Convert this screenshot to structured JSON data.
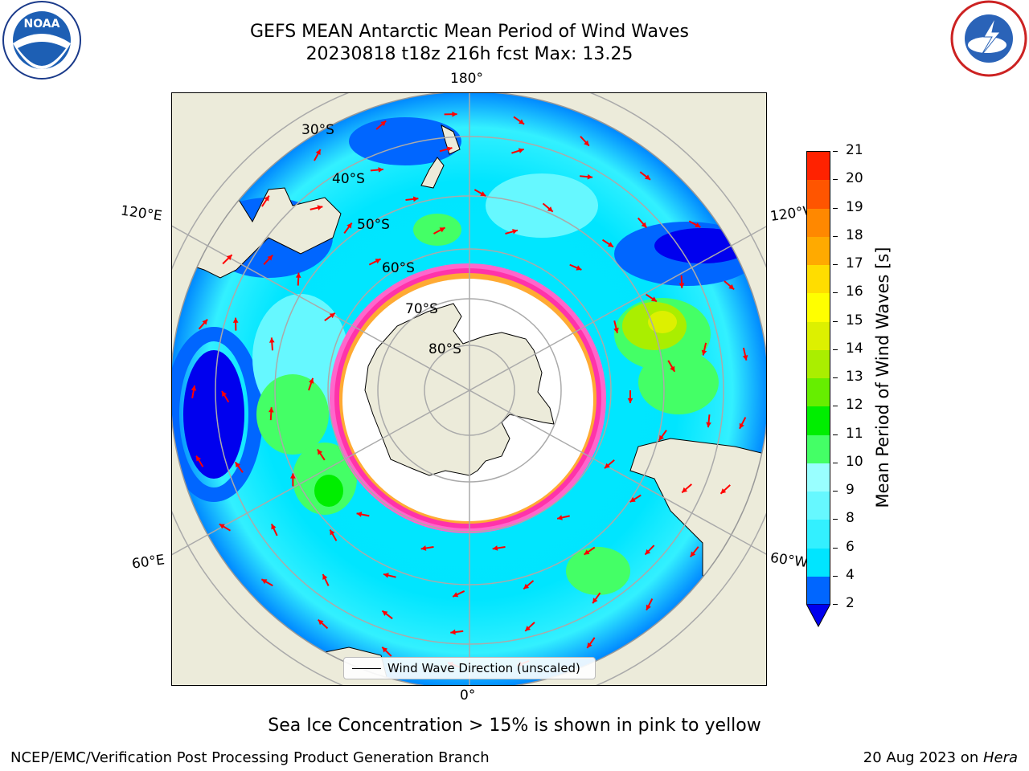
{
  "title": {
    "line1": "GEFS MEAN Antarctic Mean Period of Wind Waves",
    "line2": "20230818 t18z 216h fcst   Max: 13.25"
  },
  "longitude_labels": {
    "top": "180°",
    "bottom": "0°",
    "upper_left": "120°E",
    "upper_right": "120°W",
    "lower_left": "60°E",
    "lower_right": "60°W"
  },
  "latitude_labels": [
    "30°S",
    "40°S",
    "50°S",
    "60°S",
    "70°S",
    "80°S"
  ],
  "legend": {
    "label": "Wind Wave Direction (unscaled)"
  },
  "colorbar": {
    "label": "Mean Period of Wind Waves [s]",
    "ticks": [
      "2",
      "4",
      "6",
      "8",
      "9",
      "10",
      "11",
      "12",
      "13",
      "14",
      "15",
      "16",
      "17",
      "18",
      "19",
      "20",
      "21"
    ],
    "colors": [
      "#0066ff",
      "#00e5ff",
      "#33f0ff",
      "#66f8ff",
      "#99ffff",
      "#44ff66",
      "#00ee00",
      "#66ee00",
      "#aaee00",
      "#ddf000",
      "#ffff00",
      "#ffdd00",
      "#ffaa00",
      "#ff8800",
      "#ff5500",
      "#ff2200"
    ],
    "extend_color": "#0000ee"
  },
  "note": "Sea Ice Concentration > 15% is shown in pink to yellow",
  "credit": "NCEP/EMC/Verification Post Processing Product Generation Branch",
  "date": {
    "text": "20 Aug 2023 on ",
    "system": "Hera"
  },
  "logos": {
    "left": "NOAA",
    "right": "NATIONAL WEATHER SERVICE"
  }
}
